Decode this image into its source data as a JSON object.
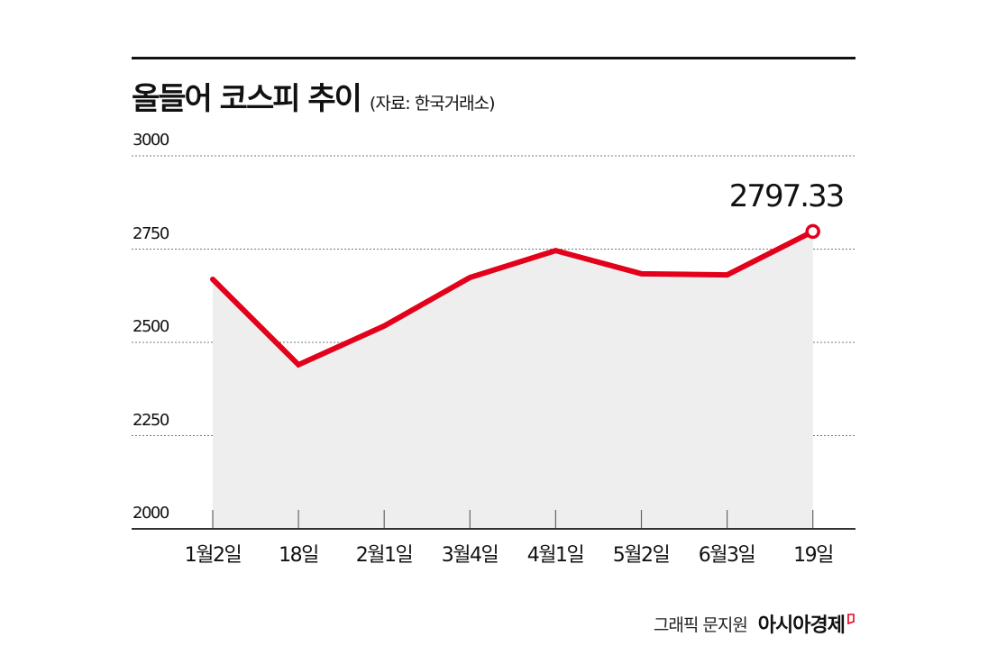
{
  "header": {
    "title": "올들어 코스피 추이",
    "source": "(자료: 한국거래소)"
  },
  "footer": {
    "credit": "그래픽 문지원",
    "brand": "아시아경제"
  },
  "colors": {
    "line": "#e3001b",
    "area": "#eeeeee",
    "grid": "#777777",
    "text": "#111111"
  },
  "annotation": {
    "last_value_label": "2797.33"
  },
  "axis": {
    "y_ticks": [
      "3000",
      "2750",
      "2500",
      "2250",
      "2000"
    ],
    "x_ticks": [
      "1월2일",
      "18일",
      "2월1일",
      "3월4일",
      "4월1일",
      "5월2일",
      "6월3일",
      "19일"
    ]
  },
  "chart_data": {
    "type": "area",
    "title": "올들어 코스피 추이",
    "subtitle": "(자료: 한국거래소)",
    "xlabel": "",
    "ylabel": "",
    "categories": [
      "1월2일",
      "18일",
      "2월1일",
      "3월4일",
      "4월1일",
      "5월2일",
      "6월3일",
      "19일"
    ],
    "series": [
      {
        "name": "코스피",
        "values": [
          2669,
          2440,
          2544,
          2674,
          2746,
          2684,
          2681,
          2797.33
        ]
      }
    ],
    "ylim": [
      2000,
      3000
    ],
    "yticks": [
      2000,
      2250,
      2500,
      2750,
      3000
    ],
    "grid": "horizontal dotted",
    "legend": "none",
    "annotations": [
      {
        "x": "19일",
        "y": 2797.33,
        "text": "2797.33",
        "marker": "open-circle"
      }
    ]
  }
}
